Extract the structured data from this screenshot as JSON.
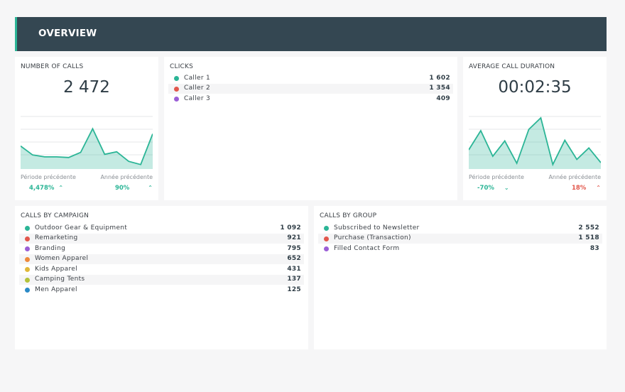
{
  "header": {
    "title": "OVERVIEW"
  },
  "colors": {
    "accent": "#2bb596",
    "header_bg": "#344752",
    "red": "#e2574c",
    "purple": "#9b5fd6",
    "orange": "#ee8a3c",
    "yellow": "#e0b83a",
    "olive": "#b3c23a",
    "blue": "#2a8ac7"
  },
  "calls": {
    "title": "NUMBER OF CALLS",
    "value": "2 472",
    "prev_period_label": "Période précédente",
    "prev_year_label": "Année précédente",
    "prev_period_value": "4,478%",
    "prev_year_value": "90%",
    "chart_data": {
      "type": "area",
      "values": [
        36,
        22,
        19,
        19,
        18,
        26,
        63,
        23,
        27,
        12,
        7,
        55
      ],
      "ylim": [
        0,
        80
      ],
      "color": "#2bb596"
    }
  },
  "clicks": {
    "title": "CLICKS",
    "items": [
      {
        "label": "Caller 1",
        "value": "1 602",
        "color": "#2bb596"
      },
      {
        "label": "Caller 2",
        "value": "1 354",
        "color": "#e2574c"
      },
      {
        "label": "Caller 3",
        "value": "409",
        "color": "#9b5fd6"
      }
    ]
  },
  "duration": {
    "title": "AVERAGE CALL DURATION",
    "value": "00:02:35",
    "prev_period_label": "Période précédente",
    "prev_year_label": "Année précédente",
    "prev_period_value": "-70%",
    "prev_year_value": "18%",
    "chart_data": {
      "type": "area",
      "values": [
        30,
        60,
        20,
        44,
        9,
        62,
        80,
        7,
        45,
        15,
        33,
        10
      ],
      "ylim": [
        0,
        80
      ],
      "color": "#2bb596"
    }
  },
  "campaign": {
    "title": "CALLS BY CAMPAIGN",
    "items": [
      {
        "label": "Outdoor Gear & Equipment",
        "value": "1 092",
        "color": "#2bb596"
      },
      {
        "label": "Remarketing",
        "value": "921",
        "color": "#e2574c"
      },
      {
        "label": "Branding",
        "value": "795",
        "color": "#9b5fd6"
      },
      {
        "label": "Women Apparel",
        "value": "652",
        "color": "#ee8a3c"
      },
      {
        "label": "Kids Apparel",
        "value": "431",
        "color": "#e0b83a"
      },
      {
        "label": "Camping Tents",
        "value": "137",
        "color": "#b3c23a"
      },
      {
        "label": "Men Apparel",
        "value": "125",
        "color": "#2a8ac7"
      }
    ]
  },
  "group": {
    "title": "CALLS BY GROUP",
    "items": [
      {
        "label": "Subscribed to Newsletter",
        "value": "2 552",
        "color": "#2bb596"
      },
      {
        "label": "Purchase (Transaction)",
        "value": "1 518",
        "color": "#e2574c"
      },
      {
        "label": "Filled Contact Form",
        "value": "83",
        "color": "#9b5fd6"
      }
    ]
  }
}
